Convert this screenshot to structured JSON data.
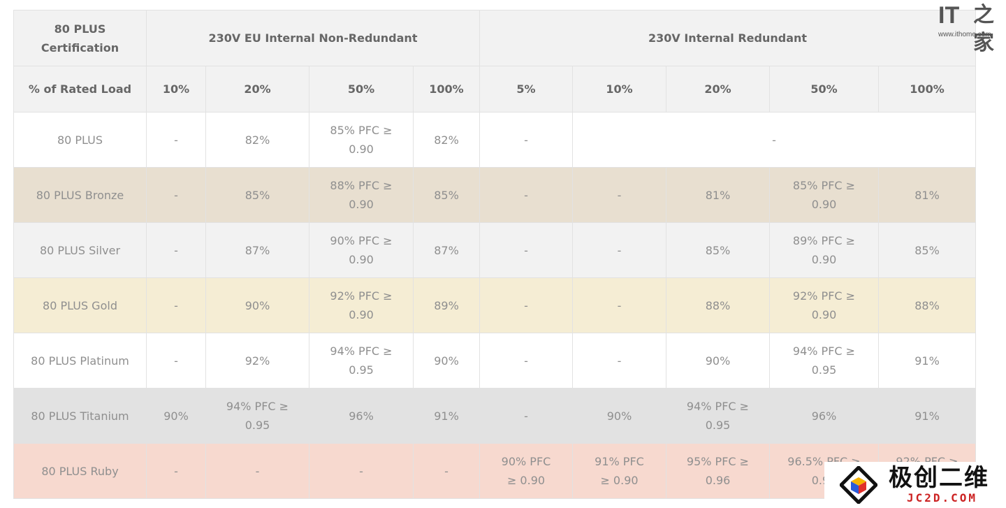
{
  "header": {
    "cert_label": "80 PLUS Certification",
    "group_a": "230V EU Internal Non-Redundant",
    "group_b": "230V Internal Redundant",
    "load_label": "% of Rated Load",
    "a_loads": [
      "10%",
      "20%",
      "50%",
      "100%"
    ],
    "b_loads": [
      "5%",
      "10%",
      "20%",
      "50%",
      "100%"
    ]
  },
  "rows": [
    {
      "name": "80 PLUS",
      "a": [
        "-",
        "82%",
        "85% PFC ≥ 0.90",
        "82%"
      ],
      "b5": "-",
      "b_merged": "-"
    },
    {
      "name": "80 PLUS Bronze",
      "a": [
        "-",
        "85%",
        "88% PFC ≥ 0.90",
        "85%"
      ],
      "b": [
        "-",
        "-",
        "81%",
        "85% PFC ≥ 0.90",
        "81%"
      ]
    },
    {
      "name": "80 PLUS Silver",
      "a": [
        "-",
        "87%",
        "90% PFC ≥ 0.90",
        "87%"
      ],
      "b": [
        "-",
        "-",
        "85%",
        "89% PFC ≥ 0.90",
        "85%"
      ]
    },
    {
      "name": "80 PLUS Gold",
      "a": [
        "-",
        "90%",
        "92% PFC ≥ 0.90",
        "89%"
      ],
      "b": [
        "-",
        "-",
        "88%",
        "92% PFC ≥ 0.90",
        "88%"
      ]
    },
    {
      "name": "80 PLUS Platinum",
      "a": [
        "-",
        "92%",
        "94% PFC ≥ 0.95",
        "90%"
      ],
      "b": [
        "-",
        "-",
        "90%",
        "94% PFC ≥ 0.95",
        "91%"
      ]
    },
    {
      "name": "80 PLUS Titanium",
      "a": [
        "90%",
        "94% PFC ≥ 0.95",
        "96%",
        "91%"
      ],
      "b": [
        "-",
        "90%",
        "94% PFC ≥ 0.95",
        "96%",
        "91%"
      ]
    },
    {
      "name": "80 PLUS Ruby",
      "a": [
        "-",
        "-",
        "-",
        "-"
      ],
      "b": [
        "90% PFC ≥ 0.90",
        "91% PFC ≥ 0.90",
        "95% PFC ≥ 0.96",
        "96.5% PFC ≥ 0.96",
        "92% PFC ≥ 0.96"
      ]
    }
  ],
  "colors": {
    "bronze": "#e8dfd0",
    "silver": "#f2f2f2",
    "gold": "#f5edd4",
    "platinum": "#ffffff",
    "titanium": "#e2e2e2",
    "ruby": "#f7d9cf"
  },
  "logo_it": {
    "mark": "IT",
    "mark2": "之家",
    "url": "www.ithome.com"
  },
  "watermark": {
    "icon": "cube-diamond-icon",
    "cn": "极创二维",
    "en": "JC2D.COM"
  }
}
